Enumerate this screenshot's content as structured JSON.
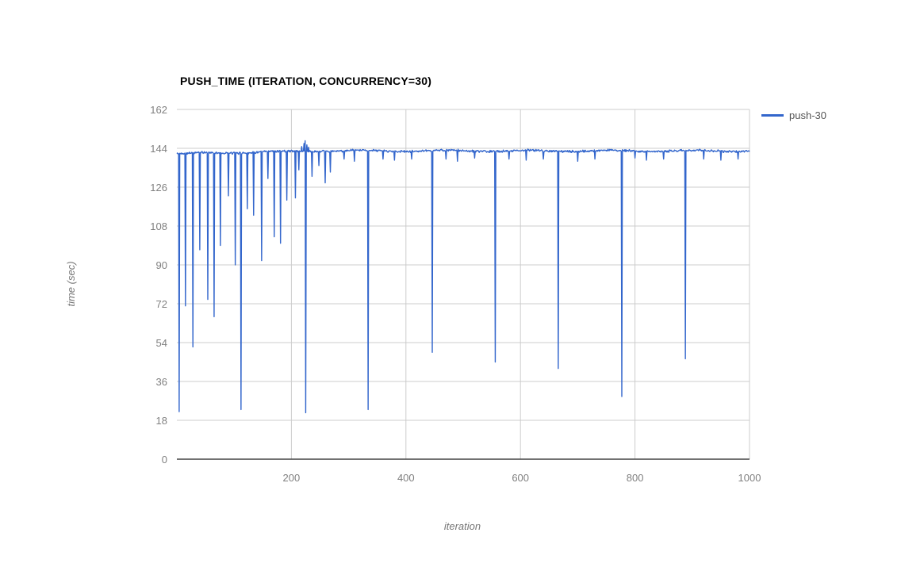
{
  "colors": {
    "background": "#ffffff",
    "series_blue": "#3366cc",
    "gridline": "#cccccc",
    "axis_line": "#424242",
    "tick_label": "#808080",
    "title_text": "#000000",
    "axis_title_text": "#757575",
    "legend_text": "#555555"
  },
  "legend": {
    "position": "right",
    "items": [
      {
        "label": "push-30",
        "color": "#3366cc"
      }
    ]
  },
  "chart_data": {
    "type": "line",
    "title": "PUSH_TIME (ITERATION, CONCURRENCY=30)",
    "xlabel": "iteration",
    "ylabel": "time (sec)",
    "xlim": [
      0,
      1000
    ],
    "ylim": [
      0,
      162
    ],
    "xticks": [
      200,
      400,
      600,
      800,
      1000
    ],
    "yticks": [
      0,
      18,
      36,
      54,
      72,
      90,
      108,
      126,
      144,
      162
    ],
    "grid": true,
    "legend_position": "right",
    "n_points": 1001,
    "series": [
      {
        "name": "push-30",
        "color": "#3366cc",
        "baseline": {
          "start_level": 141.5,
          "settled_level": 142.8,
          "settle_iteration": 250,
          "noise_amplitude": 1.2,
          "noise_seed": 42
        },
        "peaks": [
          [
            218,
            144.8
          ],
          [
            222,
            146.2
          ],
          [
            224,
            147.5
          ],
          [
            227,
            145.6
          ],
          [
            230,
            144.5
          ]
        ],
        "dips": [
          [
            4,
            22
          ],
          [
            15,
            71
          ],
          [
            28,
            52
          ],
          [
            40,
            97
          ],
          [
            54,
            74
          ],
          [
            65,
            66
          ],
          [
            76,
            99
          ],
          [
            90,
            122
          ],
          [
            102,
            90
          ],
          [
            112,
            23
          ],
          [
            123,
            116
          ],
          [
            134,
            113
          ],
          [
            148,
            92
          ],
          [
            159,
            130
          ],
          [
            170,
            103
          ],
          [
            181,
            100
          ],
          [
            192,
            120
          ],
          [
            207,
            121
          ],
          [
            213,
            134
          ],
          [
            225,
            21.5
          ],
          [
            236,
            131
          ],
          [
            248,
            136
          ],
          [
            259,
            128
          ],
          [
            268,
            133
          ],
          [
            292,
            139
          ],
          [
            310,
            138
          ],
          [
            334,
            23
          ],
          [
            360,
            139
          ],
          [
            380,
            138.5
          ],
          [
            410,
            139
          ],
          [
            446,
            49.5
          ],
          [
            470,
            139
          ],
          [
            490,
            138
          ],
          [
            520,
            139.5
          ],
          [
            556,
            45
          ],
          [
            580,
            139
          ],
          [
            610,
            138.5
          ],
          [
            640,
            139
          ],
          [
            666,
            42
          ],
          [
            700,
            138
          ],
          [
            730,
            139
          ],
          [
            777,
            29
          ],
          [
            800,
            139.5
          ],
          [
            820,
            138.5
          ],
          [
            850,
            139
          ],
          [
            888,
            46.5
          ],
          [
            920,
            139
          ],
          [
            950,
            138.5
          ],
          [
            980,
            139
          ]
        ]
      }
    ]
  }
}
